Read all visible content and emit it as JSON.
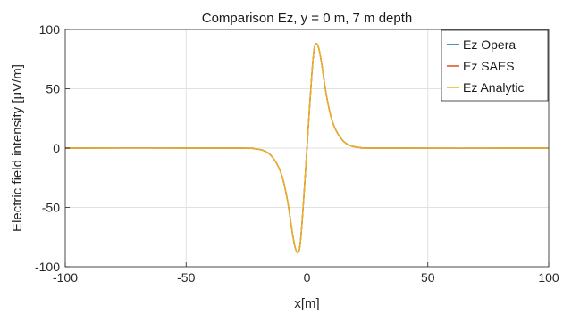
{
  "chart_data": {
    "type": "line",
    "title": "Comparison Ez, y = 0 m, 7 m depth",
    "xlabel": "x[m]",
    "ylabel": "Electric field intensity [μV/m]",
    "xlim": [
      -100,
      100
    ],
    "ylim": [
      -100,
      100
    ],
    "xticks": [
      -100,
      -50,
      0,
      50,
      100
    ],
    "yticks": [
      -100,
      -50,
      0,
      50,
      100
    ],
    "grid": true,
    "legend_position": "top-right",
    "series": [
      {
        "name": "Ez Opera",
        "color": "#0072BD",
        "x": [
          -100,
          -30,
          -22,
          -18,
          -15,
          -12,
          -10,
          -8,
          -6,
          -5,
          -4,
          -3,
          -2,
          -1,
          0,
          1,
          2,
          3,
          4,
          5,
          6,
          8,
          10,
          12,
          15,
          18,
          22,
          30,
          100
        ],
        "y": [
          0,
          0,
          -0.5,
          -2,
          -6,
          -15,
          -26,
          -45,
          -72,
          -83,
          -88,
          -84,
          -62,
          -32,
          0,
          32,
          62,
          84,
          88,
          83,
          72,
          45,
          26,
          15,
          6,
          2,
          0.5,
          0,
          0
        ]
      },
      {
        "name": "Ez SAES",
        "color": "#D95319",
        "x": [
          -100,
          -30,
          -22,
          -18,
          -15,
          -12,
          -10,
          -8,
          -6,
          -5,
          -4,
          -3,
          -2,
          -1,
          0,
          1,
          2,
          3,
          4,
          5,
          6,
          8,
          10,
          12,
          15,
          18,
          22,
          30,
          100
        ],
        "y": [
          0,
          0,
          -0.5,
          -2,
          -6,
          -15,
          -26,
          -45,
          -72,
          -83,
          -88,
          -84,
          -62,
          -32,
          0,
          32,
          62,
          84,
          88,
          83,
          72,
          45,
          26,
          15,
          6,
          2,
          0.5,
          0,
          0
        ]
      },
      {
        "name": "Ez Analytic",
        "color": "#EDB120",
        "x": [
          -100,
          -30,
          -22,
          -18,
          -15,
          -12,
          -10,
          -8,
          -6,
          -5,
          -4,
          -3,
          -2,
          -1,
          0,
          1,
          2,
          3,
          4,
          5,
          6,
          8,
          10,
          12,
          15,
          18,
          22,
          30,
          100
        ],
        "y": [
          0,
          0,
          -0.5,
          -2,
          -6,
          -15,
          -26,
          -45,
          -72,
          -83,
          -88,
          -84,
          -62,
          -32,
          0,
          32,
          62,
          84,
          88,
          83,
          72,
          45,
          26,
          15,
          6,
          2,
          0.5,
          0,
          0
        ]
      }
    ]
  }
}
